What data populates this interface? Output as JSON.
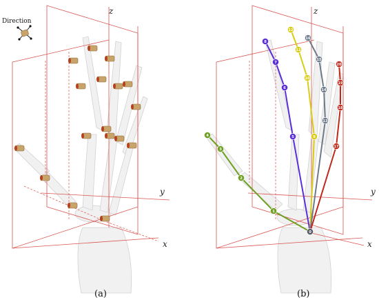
{
  "captions": {
    "left": "(a)",
    "right": "(b)"
  },
  "direction_legend": {
    "label": "Direction",
    "icon": "direction-arrows-icon"
  },
  "axes": {
    "x": "x",
    "y": "y",
    "z": "z"
  },
  "colors": {
    "frame": "#d9534f",
    "bone": "#d8d8d8",
    "sensor_body": "#c8a46a",
    "sensor_cap": "#b5421e",
    "thumb": "#6fa024",
    "index": "#5a2fd8",
    "middle": "#d8cc14",
    "ring": "#6c7a8a",
    "little": "#c0281c",
    "root": "#555a66"
  },
  "skeleton": {
    "root": {
      "id": "0",
      "color": "root"
    },
    "chains": [
      {
        "finger": "thumb",
        "color": "thumb",
        "nodes": [
          "1",
          "2",
          "3",
          "4"
        ]
      },
      {
        "finger": "index",
        "color": "index",
        "nodes": [
          "5",
          "6",
          "7",
          "8"
        ]
      },
      {
        "finger": "middle",
        "color": "middle",
        "nodes": [
          "9",
          "10",
          "11",
          "12"
        ]
      },
      {
        "finger": "ring",
        "color": "ring",
        "nodes": [
          "13",
          "14",
          "15",
          "16"
        ]
      },
      {
        "finger": "little",
        "color": "little",
        "nodes": [
          "17",
          "18",
          "19",
          "20"
        ]
      }
    ]
  }
}
